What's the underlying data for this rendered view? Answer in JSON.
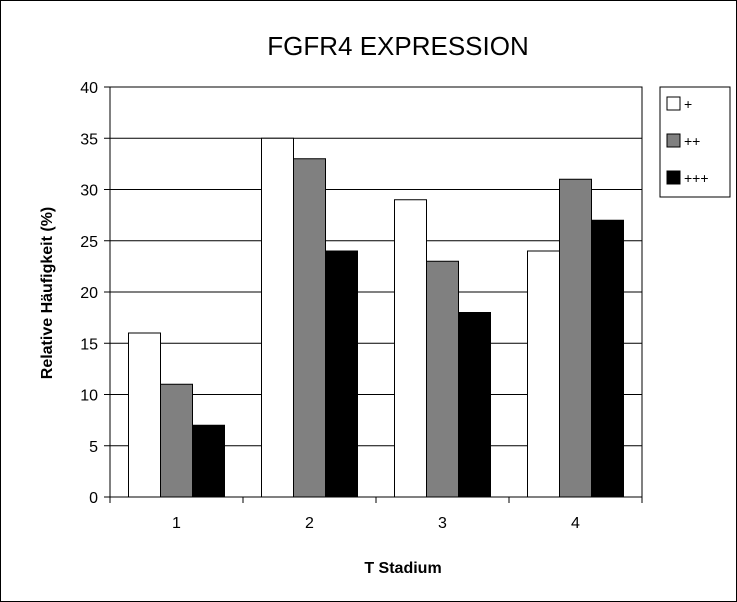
{
  "chart_data": {
    "type": "bar",
    "title": "FGFR4 EXPRESSION",
    "xlabel": "T Stadium",
    "ylabel": "Relative Häufigkeit (%)",
    "categories": [
      "1",
      "2",
      "3",
      "4"
    ],
    "series": [
      {
        "name": "+",
        "values": [
          16,
          35,
          29,
          24
        ],
        "color": "#ffffff"
      },
      {
        "name": "++",
        "values": [
          11,
          33,
          23,
          31
        ],
        "color": "#808080"
      },
      {
        "name": "+++",
        "values": [
          7,
          24,
          18,
          27
        ],
        "color": "#000000"
      }
    ],
    "ylim": [
      0,
      40
    ],
    "yticks": [
      "0",
      "5",
      "10",
      "15",
      "20",
      "25",
      "30",
      "35",
      "40"
    ],
    "grid": true,
    "legend": "right"
  }
}
